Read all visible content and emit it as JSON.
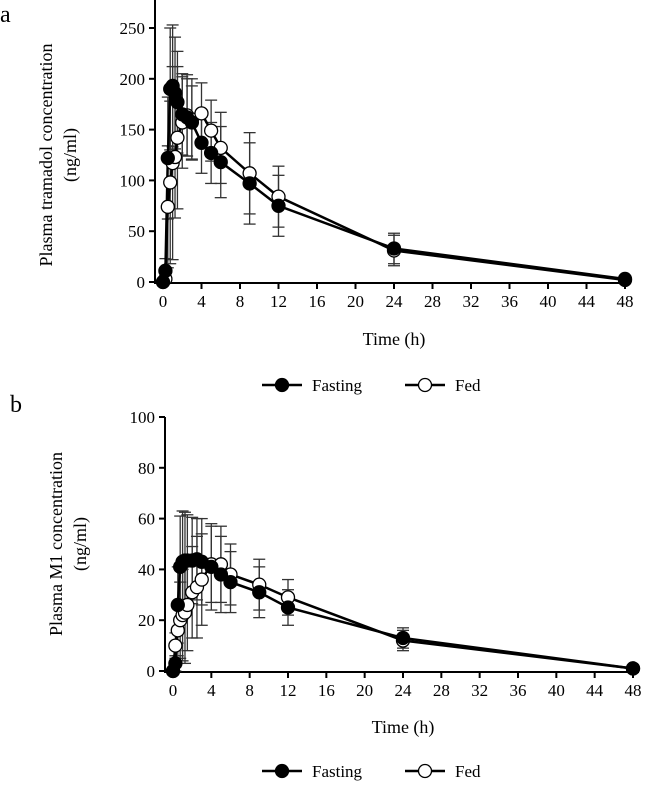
{
  "chart_data": [
    {
      "type": "line",
      "panel_label": "a",
      "xlabel": "Time (h)",
      "ylabel_line1": "Plasma tramadol concentration",
      "ylabel_line2": "(ng/ml)",
      "xlim": [
        0,
        48
      ],
      "ylim": [
        0,
        250
      ],
      "xticks": [
        0,
        4,
        8,
        12,
        16,
        20,
        24,
        28,
        32,
        36,
        40,
        44,
        48
      ],
      "yticks": [
        0,
        50,
        100,
        150,
        200,
        250
      ],
      "x": [
        0,
        0.25,
        0.5,
        0.75,
        1,
        1.25,
        1.5,
        2,
        2.5,
        3,
        4,
        5,
        6,
        9,
        12,
        24,
        48
      ],
      "series": [
        {
          "name": "Fasting",
          "marker": "filled",
          "values": [
            0,
            11,
            122,
            190,
            193,
            186,
            177,
            165,
            162,
            157,
            137,
            127,
            118,
            97,
            75,
            33,
            3
          ],
          "sd": [
            0,
            12,
            60,
            60,
            60,
            55,
            50,
            40,
            38,
            36,
            30,
            30,
            35,
            40,
            30,
            15,
            2
          ]
        },
        {
          "name": "Fed",
          "marker": "open",
          "values": [
            0,
            3,
            74,
            98,
            117,
            123,
            142,
            157,
            164,
            160,
            166,
            149,
            132,
            107,
            84,
            31,
            2
          ],
          "sd": [
            0,
            5,
            60,
            80,
            95,
            60,
            70,
            45,
            40,
            40,
            30,
            30,
            35,
            40,
            30,
            15,
            2
          ]
        }
      ],
      "legend": "bottom"
    },
    {
      "type": "line",
      "panel_label": "b",
      "xlabel": "Time (h)",
      "ylabel_line1": "Plasma M1 concentration",
      "ylabel_line2": "(ng/ml)",
      "xlim": [
        0,
        48
      ],
      "ylim": [
        0,
        100
      ],
      "xticks": [
        0,
        4,
        8,
        12,
        16,
        20,
        24,
        28,
        32,
        36,
        40,
        44,
        48
      ],
      "yticks": [
        0,
        20,
        40,
        60,
        80,
        100
      ],
      "x": [
        0,
        0.25,
        0.5,
        0.75,
        1,
        1.25,
        1.5,
        2,
        2.5,
        3,
        4,
        5,
        6,
        9,
        12,
        24,
        48
      ],
      "series": [
        {
          "name": "Fasting",
          "marker": "filled",
          "values": [
            0,
            3,
            26,
            41,
            43,
            43.5,
            43.5,
            43.5,
            44,
            43,
            41,
            38,
            35,
            31,
            25,
            13,
            1
          ],
          "sd": [
            0,
            3,
            15,
            20,
            20,
            19,
            18,
            17,
            16,
            17,
            17,
            15,
            12,
            10,
            7,
            4,
            1
          ],
          "color": "#000"
        },
        {
          "name": "Fed",
          "marker": "open",
          "values": [
            0,
            10,
            16,
            20,
            22,
            23,
            26,
            31,
            33,
            36,
            42,
            42,
            38,
            34,
            29,
            12,
            1
          ],
          "sd": [
            0,
            5,
            10,
            15,
            18,
            20,
            18,
            18,
            20,
            18,
            15,
            15,
            12,
            10,
            7,
            4,
            1
          ]
        }
      ],
      "legend": "bottom"
    }
  ]
}
